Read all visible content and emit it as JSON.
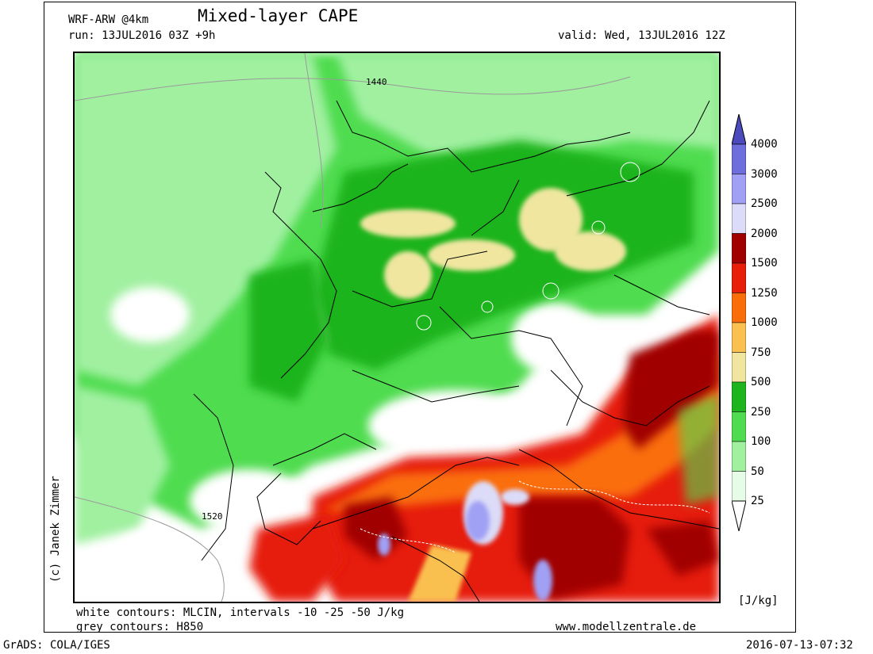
{
  "header": {
    "model": "WRF-ARW @4km",
    "title": "Mixed-layer CAPE",
    "run": "run: 13JUL2016 03Z +9h",
    "valid": "valid: Wed, 13JUL2016 12Z"
  },
  "footer": {
    "white_contours": "white contours: MLCIN, intervals -10 -25 -50 J/kg",
    "grey_contours": "grey contours: H850",
    "website": "www.modellzentrale.de",
    "grads": "GrADS: COLA/IGES",
    "timestamp": "2016-07-13-07:32"
  },
  "credit": "(c) Janek Zimmer",
  "map": {
    "contour_labels": [
      "1440",
      "1520"
    ]
  },
  "colorbar": {
    "unit": "[J/kg]",
    "levels": [
      "25",
      "50",
      "100",
      "250",
      "500",
      "750",
      "1000",
      "1250",
      "1500",
      "2000",
      "2500",
      "3000",
      "4000"
    ],
    "colors": [
      "#e6fce6",
      "#a0f0a0",
      "#50dc50",
      "#1eb41e",
      "#f0e6a0",
      "#fac050",
      "#fa6e0a",
      "#e61e0a",
      "#a00000",
      "#dcdcf8",
      "#a0a0f5",
      "#6e6edc",
      "#4b4bbe"
    ],
    "top_color": "#4b4bbe",
    "bottom_color": "#ffffff"
  }
}
